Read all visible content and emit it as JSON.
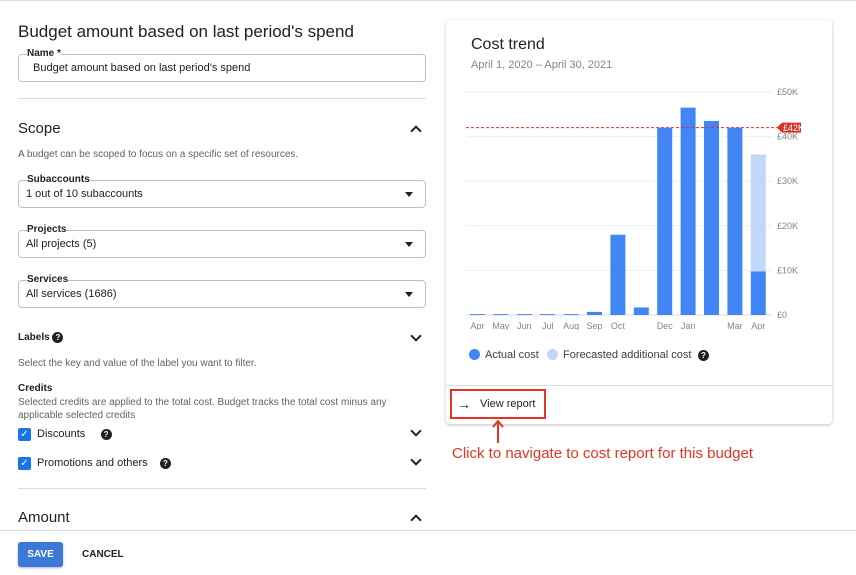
{
  "form": {
    "title": "Budget amount based on last period's spend",
    "name_label": "Name *",
    "name_value": "Budget amount based on last period's spend",
    "scope": {
      "title": "Scope",
      "description": "A budget can be scoped to focus on a specific set of resources.",
      "subaccounts_label": "Subaccounts",
      "subaccounts_value": "1 out of 10 subaccounts",
      "projects_label": "Projects",
      "projects_value": "All projects (5)",
      "services_label": "Services",
      "services_value": "All services (1686)",
      "labels_title": "Labels",
      "labels_description": "Select the key and value of the label you want to filter.",
      "credits_title": "Credits",
      "credits_description": "Selected credits are applied to the total cost. Budget tracks the total cost minus any applicable selected credits",
      "discounts_label": "Discounts",
      "discounts_checked": true,
      "promotions_label": "Promotions and others",
      "promotions_checked": true
    },
    "amount_title": "Amount"
  },
  "footer": {
    "save": "SAVE",
    "cancel": "CANCEL"
  },
  "card": {
    "title": "Cost trend",
    "subtitle": "April 1, 2020 – April 30, 2021",
    "view_report": "View report",
    "help": "?"
  },
  "annotation": "Click to navigate to cost report for this budget",
  "colors": {
    "actual": "#4285f4",
    "forecast": "#c2d7fa",
    "threshold": "#d93025",
    "annotation": "#e53424"
  },
  "chart_data": {
    "type": "bar",
    "categories": [
      "Apr",
      "May",
      "Jun",
      "Jul",
      "Aug",
      "Sep",
      "Oct",
      "",
      "Dec",
      "Jan",
      "",
      "Mar",
      "Apr"
    ],
    "series": [
      {
        "name": "Actual cost",
        "values": [
          0.2,
          0.2,
          0.2,
          0.2,
          0.2,
          0.7,
          18,
          1.7,
          42,
          46.5,
          43.5,
          42,
          9.8
        ]
      },
      {
        "name": "Forecasted additional cost",
        "values": [
          0,
          0,
          0,
          0,
          0,
          0,
          0,
          0,
          0,
          0,
          0,
          0,
          26.2
        ]
      }
    ],
    "unit": "£K",
    "stacked": true,
    "yticks": [
      "£0",
      "£10K",
      "£20K",
      "£30K",
      "£40K",
      "£50K"
    ],
    "ylim": [
      0,
      50
    ],
    "threshold": {
      "value": 42,
      "label": "£42K"
    },
    "legend_position": "bottom",
    "grid": true
  }
}
